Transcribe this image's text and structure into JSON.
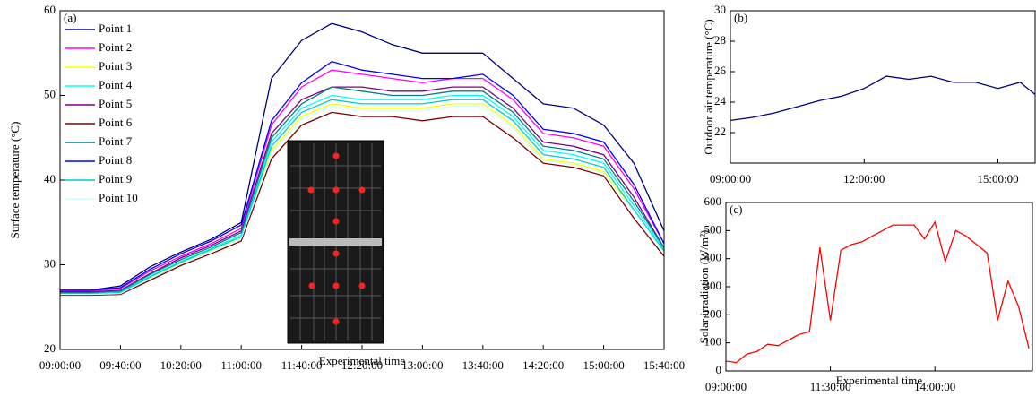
{
  "chart_data": [
    {
      "type": "line",
      "annotation": "(a)",
      "xlabel": "Experimental time",
      "ylabel": "Surface temperature (°C)",
      "x": [
        "09:00:00",
        "09:20:00",
        "09:40:00",
        "10:00:00",
        "10:20:00",
        "10:40:00",
        "11:00:00",
        "11:20:00",
        "11:40:00",
        "12:00:00",
        "12:20:00",
        "12:40:00",
        "13:00:00",
        "13:20:00",
        "13:40:00",
        "14:00:00",
        "14:20:00",
        "14:40:00",
        "15:00:00",
        "15:20:00",
        "15:40:00"
      ],
      "xlim": [
        "09:00:00",
        "15:40:00"
      ],
      "xticks": [
        "09:00:00",
        "09:40:00",
        "10:20:00",
        "11:00:00",
        "11:40:00",
        "12:20:00",
        "13:00:00",
        "13:40:00",
        "14:20:00",
        "15:00:00",
        "15:40:00"
      ],
      "ylim": [
        20,
        60
      ],
      "yticks": [
        20,
        30,
        40,
        50,
        60
      ],
      "series": [
        {
          "name": "Point 1",
          "color": "#000080",
          "values": [
            27,
            27,
            27.5,
            29.8,
            31.5,
            33,
            35,
            52,
            56.5,
            58.5,
            57.5,
            56,
            55,
            55,
            55,
            52,
            49,
            48.5,
            46.5,
            42,
            34
          ]
        },
        {
          "name": "Point 2",
          "color": "#ff00ff",
          "values": [
            26.9,
            26.9,
            27.2,
            29.3,
            31,
            32.5,
            34.3,
            46.5,
            51,
            53,
            52.5,
            52,
            51.5,
            52,
            52,
            49.5,
            45.5,
            45,
            44,
            39,
            32.5
          ]
        },
        {
          "name": "Point 3",
          "color": "#ffff00",
          "values": [
            26.5,
            26.5,
            26.7,
            28.5,
            30.2,
            31.7,
            33.2,
            43.5,
            47.5,
            49,
            48.5,
            48.5,
            48.5,
            49,
            49,
            46.5,
            42.5,
            42,
            41,
            36.5,
            31.5
          ]
        },
        {
          "name": "Point 4",
          "color": "#00ffff",
          "values": [
            26.6,
            26.6,
            26.8,
            28.7,
            30.4,
            31.9,
            33.5,
            44.5,
            48.5,
            50,
            49.5,
            49.5,
            49.5,
            50,
            50,
            47.5,
            43.5,
            43,
            42,
            37,
            31.8
          ]
        },
        {
          "name": "Point 5",
          "color": "#800080",
          "values": [
            26.8,
            26.8,
            27,
            29,
            30.8,
            32.3,
            34,
            45.5,
            49.5,
            51,
            51,
            50.5,
            50.5,
            51,
            51,
            48.5,
            44.5,
            44,
            43,
            38,
            32
          ]
        },
        {
          "name": "Point 6",
          "color": "#800000",
          "values": [
            26.4,
            26.4,
            26.5,
            28.2,
            29.9,
            31.3,
            32.8,
            42.5,
            46.5,
            48,
            47.5,
            47.5,
            47,
            47.5,
            47.5,
            45,
            42,
            41.5,
            40.5,
            35.5,
            31
          ]
        },
        {
          "name": "Point 7",
          "color": "#008080",
          "values": [
            26.7,
            26.7,
            26.9,
            28.9,
            30.6,
            32.1,
            33.8,
            45,
            49,
            51,
            50.5,
            50,
            50,
            50.5,
            50.5,
            48,
            44,
            43.5,
            42.5,
            37.5,
            32
          ]
        },
        {
          "name": "Point 8",
          "color": "#0000ff",
          "values": [
            27,
            27,
            27.3,
            29.5,
            31.3,
            32.8,
            34.7,
            47,
            51.5,
            54,
            53,
            52.5,
            52,
            52,
            52.5,
            50,
            46,
            45.5,
            44.5,
            39.5,
            32.5
          ]
        },
        {
          "name": "Point 9",
          "color": "#00cccc",
          "values": [
            26.6,
            26.6,
            26.7,
            28.6,
            30.3,
            31.8,
            33.3,
            44,
            48,
            49.5,
            49,
            49,
            49,
            49.5,
            49.5,
            47,
            43,
            42.5,
            41.5,
            36.5,
            31.6
          ]
        },
        {
          "name": "Point 10",
          "color": "#ccffff",
          "values": [
            26.5,
            26.5,
            26.6,
            28.4,
            30.1,
            31.6,
            33.1,
            43.2,
            47.2,
            48.7,
            48.2,
            48.2,
            48.2,
            48.7,
            48.7,
            46.2,
            42.3,
            41.8,
            40.8,
            36.3,
            31.4
          ]
        }
      ]
    },
    {
      "type": "line",
      "annotation": "(b)",
      "ylabel": "Outdoor air temperature (°C)",
      "x": [
        "09:00:00",
        "09:30:00",
        "10:00:00",
        "10:30:00",
        "11:00:00",
        "11:30:00",
        "12:00:00",
        "12:30:00",
        "13:00:00",
        "13:30:00",
        "14:00:00",
        "14:30:00",
        "15:00:00",
        "15:30:00",
        "15:50:00"
      ],
      "xlim": [
        "09:00:00",
        "15:50:00"
      ],
      "xticks": [
        "09:00:00",
        "12:00:00",
        "15:00:00"
      ],
      "ylim": [
        20,
        30
      ],
      "yticks": [
        22,
        24,
        26,
        28,
        30
      ],
      "series": [
        {
          "color": "#000080",
          "values": [
            22.8,
            23,
            23.3,
            23.7,
            24.1,
            24.4,
            24.9,
            25.7,
            25.5,
            25.7,
            25.3,
            25.3,
            24.9,
            25.3,
            24.5
          ]
        }
      ]
    },
    {
      "type": "line",
      "annotation": "(c)",
      "xlabel": "Experimental time",
      "ylabel": "Solar irradiation (W/m²)",
      "x": [
        "09:00:00",
        "09:15:00",
        "09:30:00",
        "09:45:00",
        "10:00:00",
        "10:15:00",
        "10:30:00",
        "10:45:00",
        "11:00:00",
        "11:15:00",
        "11:30:00",
        "11:45:00",
        "12:00:00",
        "12:15:00",
        "12:30:00",
        "12:45:00",
        "13:00:00",
        "13:15:00",
        "13:30:00",
        "13:45:00",
        "14:00:00",
        "14:15:00",
        "14:30:00",
        "14:45:00",
        "15:00:00",
        "15:15:00",
        "15:30:00",
        "15:45:00",
        "16:00:00",
        "16:15:00"
      ],
      "xlim": [
        "09:00:00",
        "16:20:00"
      ],
      "xticks": [
        "09:00:00",
        "11:30:00",
        "14:00:00"
      ],
      "ylim": [
        0,
        600
      ],
      "yticks": [
        0,
        100,
        200,
        300,
        400,
        500,
        600
      ],
      "series": [
        {
          "color": "#ff0000",
          "values": [
            35,
            30,
            60,
            70,
            95,
            90,
            110,
            130,
            140,
            440,
            180,
            430,
            450,
            460,
            480,
            500,
            520,
            520,
            520,
            470,
            530,
            390,
            500,
            480,
            450,
            420,
            180,
            320,
            230,
            80
          ]
        }
      ]
    }
  ]
}
